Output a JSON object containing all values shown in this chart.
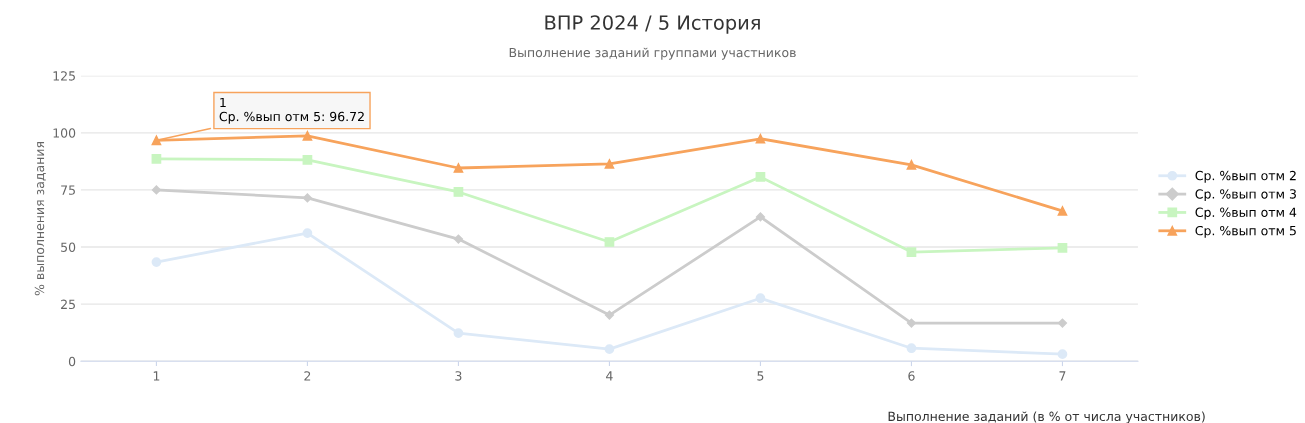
{
  "chart_data": {
    "type": "line",
    "title": "ВПР 2024 / 5 История",
    "subtitle": "Выполнение заданий группами участников",
    "ylabel": "% выполнения задания",
    "categories": [
      "1",
      "2",
      "3",
      "4",
      "5",
      "6",
      "7"
    ],
    "series": [
      {
        "name": "Ср. %вып отм 2",
        "color": "#dce9f7",
        "marker": "circle",
        "values": [
          43.4,
          56.1,
          12.3,
          5.3,
          27.6,
          5.7,
          3.1
        ]
      },
      {
        "name": "Ср. %вып отм 3",
        "color": "#cccccc",
        "marker": "diamond",
        "values": [
          75.0,
          71.5,
          53.5,
          20.2,
          63.2,
          16.7,
          16.7
        ]
      },
      {
        "name": "Ср. %вып отм 4",
        "color": "#c8f5c0",
        "marker": "square",
        "values": [
          88.6,
          88.2,
          74.1,
          52.2,
          80.7,
          47.8,
          49.6
        ]
      },
      {
        "name": "Ср. %вып отм 5",
        "color": "#f7a35c",
        "marker": "triangle",
        "values": [
          96.72,
          98.7,
          84.6,
          86.4,
          97.4,
          86.0,
          65.8
        ]
      }
    ],
    "ylim": [
      0,
      125
    ],
    "yticks": [
      0,
      25,
      50,
      75,
      100,
      125
    ],
    "grid": "y",
    "legend": "right",
    "annotations": [
      {
        "text": "1\nСр. %вып отм 5: 96.72",
        "x": "1",
        "y": 96.72
      },
      "Выполнение заданий (в % от числа участников)"
    ]
  }
}
